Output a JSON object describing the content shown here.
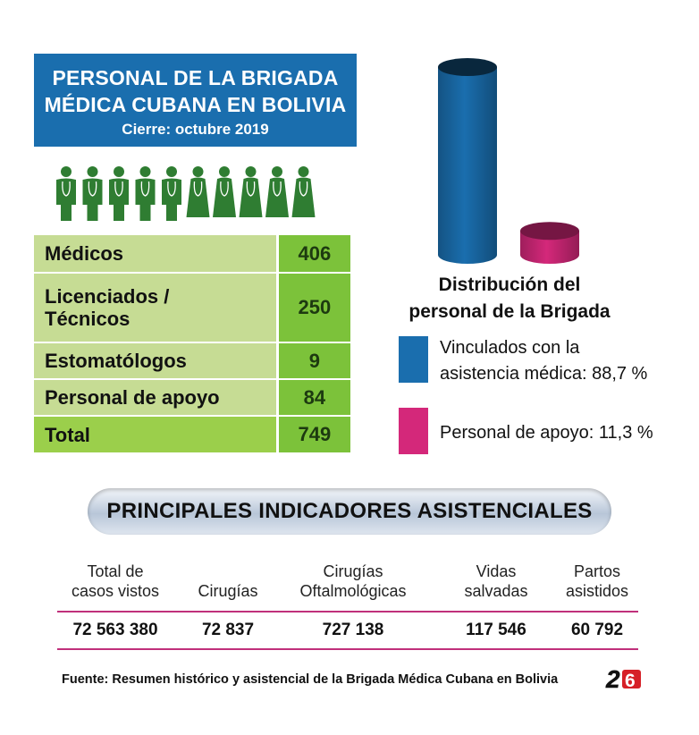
{
  "header": {
    "title_line1": "PERSONAL DE LA BRIGADA",
    "title_line2": "MÉDICA CUBANA EN BOLIVIA",
    "subtitle": "Cierre: octubre 2019"
  },
  "staff_table": {
    "rows": [
      {
        "label": "Médicos",
        "value": "406"
      },
      {
        "label_line1": "Licenciados /",
        "label_line2": "Técnicos",
        "value": "250"
      },
      {
        "label": "Estomatólogos",
        "value": "9"
      },
      {
        "label": "Personal de apoyo",
        "value": "84"
      },
      {
        "label": "Total",
        "value": "749"
      }
    ]
  },
  "chart_data": {
    "type": "bar",
    "title": "Distribución del personal de la Brigada",
    "categories": [
      "Vinculados con la asistencia médica",
      "Personal de apoyo"
    ],
    "values": [
      88.7,
      11.3
    ],
    "colors": [
      "#1a6eae",
      "#d4287a"
    ],
    "legend": [
      {
        "line1": "Vinculados con la",
        "line2": "asistencia médica: 88,7 %",
        "color": "#1a6eae"
      },
      {
        "line1": "Personal de apoyo: 11,3 %",
        "color": "#d4287a"
      }
    ],
    "title_line1": "Distribución del",
    "title_line2": "personal de la Brigada"
  },
  "indicators": {
    "banner": "PRINCIPALES INDICADORES ASISTENCIALES",
    "columns": [
      {
        "h1": "Total de",
        "h2": "casos vistos",
        "value": "72 563 380"
      },
      {
        "h1": "",
        "h2": "Cirugías",
        "value": "72 837"
      },
      {
        "h1": "Cirugías",
        "h2": "Oftalmológicas",
        "value": "727 138"
      },
      {
        "h1": "Vidas",
        "h2": "salvadas",
        "value": "117 546"
      },
      {
        "h1": "Partos",
        "h2": "asistidos",
        "value": "60 792"
      }
    ]
  },
  "footer": {
    "source": "Fuente: Resumen histórico y asistencial de la Brigada Médica Cubana en Bolivia",
    "logo_text": "26"
  },
  "colors": {
    "blue": "#1a6eae",
    "magenta": "#d4287a",
    "light_green": "#c6dc94",
    "green": "#7cc23a",
    "figure_green": "#2f7d32"
  }
}
